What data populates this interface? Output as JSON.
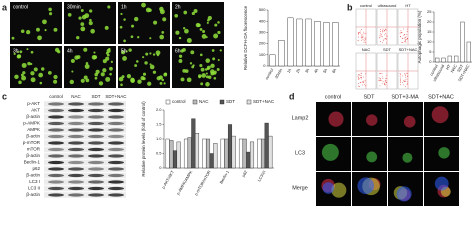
{
  "panel_labels": [
    "a",
    "b",
    "c",
    "d"
  ],
  "panel_a": {
    "image_labels": [
      "control",
      "30min",
      "1h",
      "2h",
      "3h",
      "4h",
      "5h",
      "6h"
    ]
  },
  "panel_b": {
    "plot_labels": [
      "control",
      "ultrasound",
      "HT",
      "NAC",
      "SDT",
      "SDT+NAC"
    ]
  },
  "panel_c": {
    "lane_labels": [
      "control",
      "NAC",
      "SDT",
      "SDT+NAC"
    ],
    "row_labels": [
      "p-AKT",
      "AKT",
      "β-actin",
      "p-AMPK",
      "AMPK",
      "β-actin",
      "p-mTOR",
      "mTOR",
      "β-actin",
      "Beclin-1",
      "p62",
      "β-actin",
      "LC3 I",
      "LC3 II",
      "β-actin"
    ]
  },
  "panel_d": {
    "column_labels": [
      "control",
      "SDT",
      "SDT+3-MA",
      "SDT+NAC"
    ],
    "row_labels": [
      "Lamp2",
      "LC3",
      "Merge"
    ]
  },
  "chart_data": [
    {
      "type": "bar",
      "y_label": "Relative DCFH-DA fluorescence",
      "categories": [
        "control",
        "30min",
        "1h",
        "2h",
        "3h",
        "4h",
        "5h",
        "6h"
      ],
      "values": [
        100,
        230,
        430,
        420,
        420,
        400,
        390,
        390
      ],
      "color": "#ffffff",
      "ylim": [
        0,
        500
      ],
      "yticks": [
        0,
        100,
        200,
        300,
        400,
        500
      ]
    },
    {
      "type": "bar",
      "y_label": "Autophagic population (%)",
      "categories": [
        "control",
        "ultrasound",
        "HT",
        "NAC",
        "SDT",
        "SDT+NAC"
      ],
      "values": [
        2,
        2,
        3,
        3,
        20,
        10
      ],
      "color": "#ffffff",
      "ylim": [
        0,
        25
      ],
      "yticks": [
        0,
        5,
        10,
        15,
        20,
        25
      ]
    },
    {
      "type": "bar",
      "y_label": "Relative protein levels (fold of control)",
      "categories": [
        "p-AKT/AKT",
        "p-AMPK/AMPK",
        "p-mTOR/mTOR",
        "Beclin-1",
        "p62",
        "LC3II/I"
      ],
      "series": [
        {
          "name": "control",
          "color": "#ffffff",
          "values": [
            1,
            1,
            1,
            1,
            1,
            1
          ]
        },
        {
          "name": "NAC",
          "color": "#bbbbbb",
          "values": [
            0.95,
            1.05,
            1,
            1,
            1,
            1
          ]
        },
        {
          "name": "SDT",
          "color": "#555555",
          "values": [
            0.6,
            1.7,
            0.5,
            1.5,
            0.55,
            1.55
          ]
        },
        {
          "name": "SDT+NAC",
          "color": "#e0e0e0",
          "values": [
            0.9,
            1.2,
            0.85,
            1.1,
            0.9,
            1.1
          ]
        }
      ],
      "ylim": [
        0,
        2
      ],
      "yticks": [
        0,
        0.5,
        {
          "value": 1,
          "label": "1.0"
        },
        1.5,
        {
          "value": 2,
          "label": "2.0"
        }
      ]
    }
  ]
}
